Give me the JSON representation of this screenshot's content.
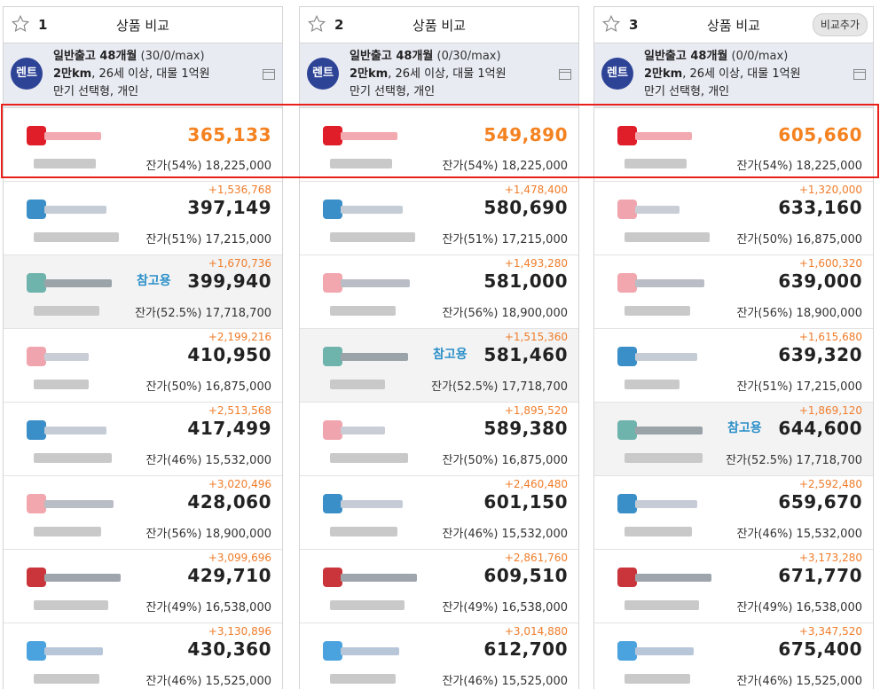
{
  "compare_title": "상품 비교",
  "add_compare_label": "비교추가",
  "rent_badge": "렌트",
  "ref_label": "참고용",
  "columns": [
    {
      "index": "1",
      "cond_line1_bold": "일반출고 48개월",
      "cond_line1_extra": " (30/0/max)",
      "cond_line2_bold": "2만km",
      "cond_line2_rest": ", 26세 이상, 대물 1억원",
      "cond_line3": "만기 선택형, 개인",
      "rows": [
        {
          "diff": "",
          "price": "365,133",
          "resid": "잔가(54%) 18,225,000",
          "logo": "red",
          "ref": false,
          "top": true
        },
        {
          "diff": "+1,536,768",
          "price": "397,149",
          "resid": "잔가(51%) 17,215,000",
          "logo": "blue",
          "ref": false
        },
        {
          "diff": "+1,670,736",
          "price": "399,940",
          "resid": "잔가(52.5%) 17,718,700",
          "logo": "teal",
          "ref": true
        },
        {
          "diff": "+2,199,216",
          "price": "410,950",
          "resid": "잔가(50%) 16,875,000",
          "logo": "pink",
          "ref": false
        },
        {
          "diff": "+2,513,568",
          "price": "417,499",
          "resid": "잔가(46%) 15,532,000",
          "logo": "blue",
          "ref": false
        },
        {
          "diff": "+3,020,496",
          "price": "428,060",
          "resid": "잔가(56%) 18,900,000",
          "logo": "redtxt",
          "ref": false
        },
        {
          "diff": "+3,099,696",
          "price": "429,710",
          "resid": "잔가(49%) 16,538,000",
          "logo": "darkred",
          "ref": false
        },
        {
          "diff": "+3,130,896",
          "price": "430,360",
          "resid": "잔가(46%) 15,525,000",
          "logo": "lightblue",
          "ref": false
        }
      ]
    },
    {
      "index": "2",
      "cond_line1_bold": "일반출고 48개월",
      "cond_line1_extra": " (0/30/max)",
      "cond_line2_bold": "2만km",
      "cond_line2_rest": ", 26세 이상, 대물 1억원",
      "cond_line3": "만기 선택형, 개인",
      "rows": [
        {
          "diff": "",
          "price": "549,890",
          "resid": "잔가(54%) 18,225,000",
          "logo": "red",
          "ref": false,
          "top": true
        },
        {
          "diff": "+1,478,400",
          "price": "580,690",
          "resid": "잔가(51%) 17,215,000",
          "logo": "blue",
          "ref": false
        },
        {
          "diff": "+1,493,280",
          "price": "581,000",
          "resid": "잔가(56%) 18,900,000",
          "logo": "redtxt",
          "ref": false
        },
        {
          "diff": "+1,515,360",
          "price": "581,460",
          "resid": "잔가(52.5%) 17,718,700",
          "logo": "teal",
          "ref": true
        },
        {
          "diff": "+1,895,520",
          "price": "589,380",
          "resid": "잔가(50%) 16,875,000",
          "logo": "pink",
          "ref": false
        },
        {
          "diff": "+2,460,480",
          "price": "601,150",
          "resid": "잔가(46%) 15,532,000",
          "logo": "blue",
          "ref": false
        },
        {
          "diff": "+2,861,760",
          "price": "609,510",
          "resid": "잔가(49%) 16,538,000",
          "logo": "darkred",
          "ref": false
        },
        {
          "diff": "+3,014,880",
          "price": "612,700",
          "resid": "잔가(46%) 15,525,000",
          "logo": "lightblue",
          "ref": false
        }
      ]
    },
    {
      "index": "3",
      "cond_line1_bold": "일반출고 48개월",
      "cond_line1_extra": " (0/0/max)",
      "cond_line2_bold": "2만km",
      "cond_line2_rest": ", 26세 이상, 대물 1억원",
      "cond_line3": "만기 선택형, 개인",
      "rows": [
        {
          "diff": "",
          "price": "605,660",
          "resid": "잔가(54%) 18,225,000",
          "logo": "red",
          "ref": false,
          "top": true
        },
        {
          "diff": "+1,320,000",
          "price": "633,160",
          "resid": "잔가(50%) 16,875,000",
          "logo": "pink",
          "ref": false
        },
        {
          "diff": "+1,600,320",
          "price": "639,000",
          "resid": "잔가(56%) 18,900,000",
          "logo": "redtxt",
          "ref": false
        },
        {
          "diff": "+1,615,680",
          "price": "639,320",
          "resid": "잔가(51%) 17,215,000",
          "logo": "blue",
          "ref": false
        },
        {
          "diff": "+1,869,120",
          "price": "644,600",
          "resid": "잔가(52.5%) 17,718,700",
          "logo": "teal",
          "ref": true
        },
        {
          "diff": "+2,592,480",
          "price": "659,670",
          "resid": "잔가(46%) 15,532,000",
          "logo": "blue",
          "ref": false
        },
        {
          "diff": "+3,173,280",
          "price": "671,770",
          "resid": "잔가(49%) 16,538,000",
          "logo": "darkred",
          "ref": false
        },
        {
          "diff": "+3,347,520",
          "price": "675,400",
          "resid": "잔가(46%) 15,525,000",
          "logo": "lightblue",
          "ref": false
        }
      ]
    }
  ],
  "colors": {
    "top_price": "#f58220",
    "diff": "#f07c2a",
    "ref_label": "#2a8fc9",
    "rent_badge": "#2d4396",
    "highlight": "#e8201b"
  }
}
